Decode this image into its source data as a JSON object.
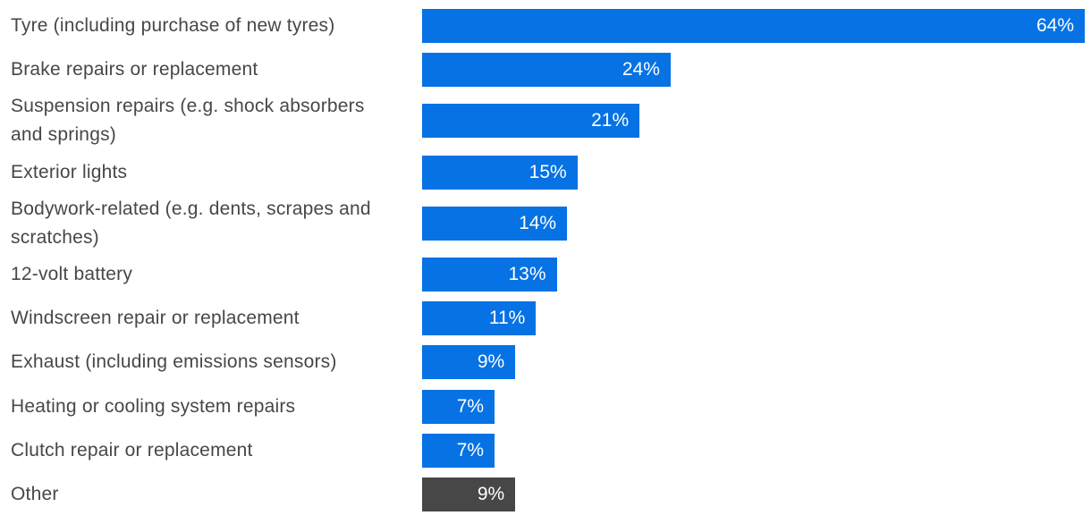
{
  "chart_data": {
    "type": "bar",
    "orientation": "horizontal",
    "title": "",
    "xlabel": "",
    "ylabel": "",
    "xlim": [
      0,
      64
    ],
    "grid": false,
    "legend": false,
    "background_color": "#ffffff",
    "bar_color_default": "#0672e4",
    "bar_color_other": "#474747",
    "category_text_color": "#474747",
    "value_text_color": "#ffffff",
    "categories": [
      "Tyre (including purchase of new tyres)",
      "Brake repairs or replacement",
      "Suspension repairs (e.g. shock absorbers and springs)",
      "Exterior lights",
      "Bodywork-related (e.g. dents, scrapes and scratches)",
      "12-volt battery",
      "Windscreen repair or replacement",
      "Exhaust (including emissions sensors)",
      "Heating or cooling system repairs",
      "Clutch repair or replacement",
      "Other"
    ],
    "values": [
      64,
      24,
      21,
      15,
      14,
      13,
      11,
      9,
      7,
      7,
      9
    ],
    "value_labels": [
      "64%",
      "24%",
      "21%",
      "15%",
      "14%",
      "13%",
      "11%",
      "9%",
      "7%",
      "7%",
      "9%"
    ],
    "rows": [
      {
        "label": "Tyre (including purchase of new tyres)",
        "value": 64,
        "display": "64%",
        "variant": "default"
      },
      {
        "label": "Brake repairs or replacement",
        "value": 24,
        "display": "24%",
        "variant": "default"
      },
      {
        "label": "Suspension repairs (e.g. shock absorbers and springs)",
        "value": 21,
        "display": "21%",
        "variant": "default"
      },
      {
        "label": "Exterior lights",
        "value": 15,
        "display": "15%",
        "variant": "default"
      },
      {
        "label": "Bodywork-related (e.g. dents, scrapes and scratches)",
        "value": 14,
        "display": "14%",
        "variant": "default"
      },
      {
        "label": "12-volt battery",
        "value": 13,
        "display": "13%",
        "variant": "default"
      },
      {
        "label": "Windscreen repair or replacement",
        "value": 11,
        "display": "11%",
        "variant": "default"
      },
      {
        "label": "Exhaust (including emissions sensors)",
        "value": 9,
        "display": "9%",
        "variant": "default"
      },
      {
        "label": "Heating or cooling system repairs",
        "value": 7,
        "display": "7%",
        "variant": "default"
      },
      {
        "label": "Clutch repair or replacement",
        "value": 7,
        "display": "7%",
        "variant": "default"
      },
      {
        "label": "Other",
        "value": 9,
        "display": "9%",
        "variant": "other"
      }
    ]
  }
}
